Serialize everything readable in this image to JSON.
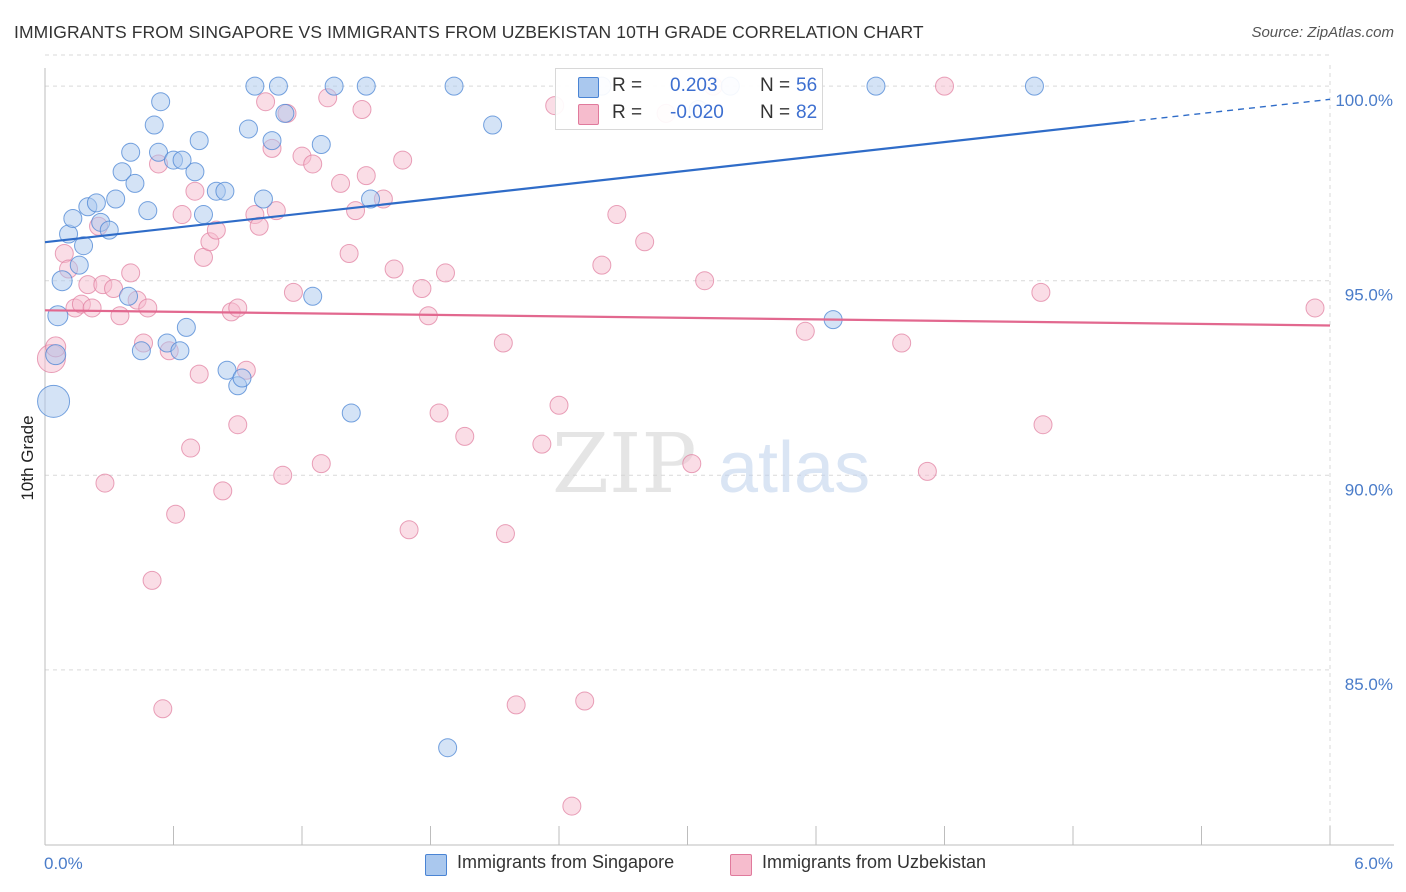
{
  "title": "IMMIGRANTS FROM SINGAPORE VS IMMIGRANTS FROM UZBEKISTAN 10TH GRADE CORRELATION CHART",
  "source": "Source: ZipAtlas.com",
  "watermark": "ZIPatlas",
  "colors": {
    "singapore_fill": "#aac8ee",
    "singapore_stroke": "#4a84d4",
    "singapore_line": "#2f6cc8",
    "uzbekistan_fill": "#f6bccd",
    "uzbekistan_stroke": "#e07a9c",
    "uzbekistan_line": "#e2688f",
    "tick_text": "#4a7cc9",
    "grid": "#d9d9d9"
  },
  "legend": {
    "rows": [
      {
        "r_label": "R =",
        "r_value": "0.203",
        "n_label": "N =",
        "n_value": "56"
      },
      {
        "r_label": "R =",
        "r_value": "-0.020",
        "n_label": "N =",
        "n_value": "82"
      }
    ]
  },
  "bottom_legend": [
    "Immigrants from Singapore",
    "Immigrants from Uzbekistan"
  ],
  "chart_data": {
    "type": "scatter",
    "title": "IMMIGRANTS FROM SINGAPORE VS IMMIGRANTS FROM UZBEKISTAN 10TH GRADE CORRELATION CHART",
    "xlabel": "",
    "ylabel": "10th Grade",
    "xlim": [
      0,
      6
    ],
    "ylim": [
      80.5,
      100.8
    ],
    "x_tick_labels": [
      "0.0%",
      "6.0%"
    ],
    "y_ticks": [
      85,
      90,
      95,
      100
    ],
    "y_tick_labels": [
      "85.0%",
      "90.0%",
      "95.0%",
      "100.0%"
    ],
    "grid": true,
    "legend_position": "top-center",
    "series": [
      {
        "name": "Immigrants from Singapore",
        "R": 0.203,
        "N": 56,
        "trend": {
          "x0": 0.0,
          "y0": 95.99,
          "x1": 5.06,
          "y1": 99.09,
          "dashed_to_x": 6.0,
          "dashed_to_y": 99.66
        },
        "points": [
          [
            0.04,
            91.9,
            16
          ],
          [
            0.05,
            93.1,
            10
          ],
          [
            0.06,
            94.1,
            10
          ],
          [
            0.08,
            95.0,
            10
          ],
          [
            0.11,
            96.2,
            9
          ],
          [
            0.13,
            96.6,
            9
          ],
          [
            0.16,
            95.4,
            9
          ],
          [
            0.18,
            95.9,
            9
          ],
          [
            0.2,
            96.9,
            9
          ],
          [
            0.24,
            97.0,
            9
          ],
          [
            0.26,
            96.5,
            9
          ],
          [
            0.3,
            96.3,
            9
          ],
          [
            0.33,
            97.1,
            9
          ],
          [
            0.36,
            97.8,
            9
          ],
          [
            0.39,
            94.6,
            9
          ],
          [
            0.4,
            98.3,
            9
          ],
          [
            0.42,
            97.5,
            9
          ],
          [
            0.45,
            93.2,
            9
          ],
          [
            0.48,
            96.8,
            9
          ],
          [
            0.51,
            99.0,
            9
          ],
          [
            0.53,
            98.3,
            9
          ],
          [
            0.54,
            99.6,
            9
          ],
          [
            0.57,
            93.4,
            9
          ],
          [
            0.6,
            98.1,
            9
          ],
          [
            0.63,
            93.2,
            9
          ],
          [
            0.66,
            93.8,
            9
          ],
          [
            0.7,
            97.8,
            9
          ],
          [
            0.72,
            98.6,
            9
          ],
          [
            0.74,
            96.7,
            9
          ],
          [
            0.8,
            97.3,
            9
          ],
          [
            0.84,
            97.3,
            9
          ],
          [
            0.85,
            92.7,
            9
          ],
          [
            0.9,
            92.3,
            9
          ],
          [
            0.92,
            92.5,
            9
          ],
          [
            0.95,
            98.9,
            9
          ],
          [
            0.98,
            100.0,
            9
          ],
          [
            1.02,
            97.1,
            9
          ],
          [
            1.06,
            98.6,
            9
          ],
          [
            1.09,
            100.0,
            9
          ],
          [
            1.12,
            99.3,
            9
          ],
          [
            1.25,
            94.6,
            9
          ],
          [
            1.29,
            98.5,
            9
          ],
          [
            1.35,
            100.0,
            9
          ],
          [
            1.43,
            91.6,
            9
          ],
          [
            1.5,
            100.0,
            9
          ],
          [
            1.52,
            97.1,
            9
          ],
          [
            1.88,
            83.0,
            9
          ],
          [
            1.91,
            100.0,
            9
          ],
          [
            2.09,
            99.0,
            9
          ],
          [
            2.6,
            100.0,
            9
          ],
          [
            3.05,
            99.4,
            9
          ],
          [
            3.2,
            100.0,
            9
          ],
          [
            3.68,
            94.0,
            9
          ],
          [
            3.88,
            100.0,
            9
          ],
          [
            4.62,
            100.0,
            9
          ],
          [
            0.64,
            98.1,
            9
          ]
        ]
      },
      {
        "name": "Immigrants from Uzbekistan",
        "R": -0.02,
        "N": 82,
        "trend": {
          "x0": 0.0,
          "y0": 94.24,
          "x1": 6.0,
          "y1": 93.85
        },
        "points": [
          [
            0.03,
            93.0,
            14
          ],
          [
            0.05,
            93.3,
            10
          ],
          [
            0.09,
            95.7,
            9
          ],
          [
            0.11,
            95.3,
            9
          ],
          [
            0.14,
            94.3,
            9
          ],
          [
            0.17,
            94.4,
            9
          ],
          [
            0.2,
            94.9,
            9
          ],
          [
            0.22,
            94.3,
            9
          ],
          [
            0.25,
            96.4,
            9
          ],
          [
            0.27,
            94.9,
            9
          ],
          [
            0.28,
            89.8,
            9
          ],
          [
            0.32,
            94.8,
            9
          ],
          [
            0.35,
            94.1,
            9
          ],
          [
            0.4,
            95.2,
            9
          ],
          [
            0.43,
            94.5,
            9
          ],
          [
            0.46,
            93.4,
            9
          ],
          [
            0.48,
            94.3,
            9
          ],
          [
            0.5,
            87.3,
            9
          ],
          [
            0.53,
            98.0,
            9
          ],
          [
            0.55,
            84.0,
            9
          ],
          [
            0.58,
            93.2,
            9
          ],
          [
            0.61,
            89.0,
            9
          ],
          [
            0.64,
            96.7,
            9
          ],
          [
            0.68,
            90.7,
            9
          ],
          [
            0.7,
            97.3,
            9
          ],
          [
            0.72,
            92.6,
            9
          ],
          [
            0.74,
            95.6,
            9
          ],
          [
            0.77,
            96.0,
            9
          ],
          [
            0.8,
            96.3,
            9
          ],
          [
            0.83,
            89.6,
            9
          ],
          [
            0.87,
            94.2,
            9
          ],
          [
            0.9,
            91.3,
            9
          ],
          [
            0.94,
            92.7,
            9
          ],
          [
            0.98,
            96.7,
            9
          ],
          [
            1.0,
            96.4,
            9
          ],
          [
            1.03,
            99.6,
            9
          ],
          [
            1.06,
            98.4,
            9
          ],
          [
            1.08,
            96.8,
            9
          ],
          [
            1.11,
            90.0,
            9
          ],
          [
            1.13,
            99.3,
            9
          ],
          [
            1.16,
            94.7,
            9
          ],
          [
            1.2,
            98.2,
            9
          ],
          [
            1.25,
            98.0,
            9
          ],
          [
            1.29,
            90.3,
            9
          ],
          [
            1.32,
            99.7,
            9
          ],
          [
            1.38,
            97.5,
            9
          ],
          [
            1.42,
            95.7,
            9
          ],
          [
            1.45,
            96.8,
            9
          ],
          [
            1.48,
            99.4,
            9
          ],
          [
            1.5,
            97.7,
            9
          ],
          [
            1.58,
            97.1,
            9
          ],
          [
            1.63,
            95.3,
            9
          ],
          [
            1.67,
            98.1,
            9
          ],
          [
            1.7,
            88.6,
            9
          ],
          [
            1.76,
            94.8,
            9
          ],
          [
            1.79,
            94.1,
            9
          ],
          [
            1.84,
            91.6,
            9
          ],
          [
            1.87,
            95.2,
            9
          ],
          [
            1.96,
            91.0,
            9
          ],
          [
            2.15,
            88.5,
            9
          ],
          [
            2.2,
            84.1,
            9
          ],
          [
            2.32,
            90.8,
            9
          ],
          [
            2.38,
            99.5,
            9
          ],
          [
            2.4,
            91.8,
            9
          ],
          [
            2.46,
            81.5,
            9
          ],
          [
            2.52,
            84.2,
            9
          ],
          [
            2.6,
            95.4,
            9
          ],
          [
            2.67,
            96.7,
            9
          ],
          [
            2.8,
            96.0,
            9
          ],
          [
            2.9,
            99.3,
            9
          ],
          [
            3.08,
            95.0,
            9
          ],
          [
            3.12,
            100.0,
            9
          ],
          [
            3.55,
            93.7,
            9
          ],
          [
            4.0,
            93.4,
            9
          ],
          [
            4.12,
            90.1,
            9
          ],
          [
            4.2,
            100.0,
            9
          ],
          [
            4.65,
            94.7,
            9
          ],
          [
            4.66,
            91.3,
            9
          ],
          [
            5.93,
            94.3,
            9
          ],
          [
            3.02,
            90.3,
            9
          ],
          [
            2.14,
            93.4,
            9
          ],
          [
            0.9,
            94.3,
            9
          ]
        ]
      }
    ]
  }
}
